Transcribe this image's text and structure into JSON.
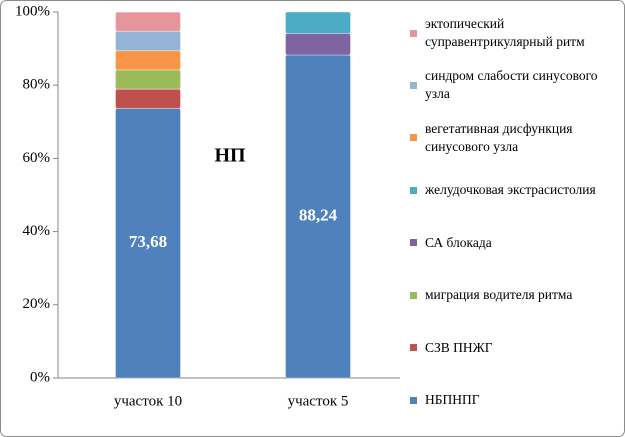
{
  "chart_data": {
    "type": "bar",
    "stacked": true,
    "annotation": "НП",
    "categories": [
      "участок 10",
      "участок 5"
    ],
    "series": [
      {
        "name": "НБПНПГ",
        "color": "#4f81bd",
        "values": [
          73.68,
          88.24
        ],
        "value_labels": [
          "73,68",
          "88,24"
        ]
      },
      {
        "name": "СЗВ ПНЖГ",
        "color": "#c0504d",
        "values": [
          5.26,
          0
        ]
      },
      {
        "name": "миграция водителя ритма",
        "color": "#9bbb59",
        "values": [
          5.26,
          0
        ]
      },
      {
        "name": "СА блокада",
        "color": "#8064a2",
        "values": [
          0,
          5.88
        ]
      },
      {
        "name": "желудочковая экстрасистолия",
        "color": "#4bacc6",
        "values": [
          0,
          5.88
        ]
      },
      {
        "name": "вегетативная дисфункция синусового узла",
        "color": "#f79646",
        "values": [
          5.26,
          0
        ]
      },
      {
        "name": "синдром слабости синусового узла",
        "color": "#95b3d7",
        "values": [
          5.26,
          0
        ]
      },
      {
        "name": "эктопический суправентрикулярный ритм",
        "color": "#e6959c",
        "values": [
          5.26,
          0
        ]
      }
    ],
    "ylim": [
      0,
      100
    ],
    "yticks": [
      {
        "value": 0,
        "label": "0%"
      },
      {
        "value": 20,
        "label": "20%"
      },
      {
        "value": 40,
        "label": "40%"
      },
      {
        "value": 60,
        "label": "60%"
      },
      {
        "value": 80,
        "label": "80%"
      },
      {
        "value": 100,
        "label": "100%"
      }
    ],
    "legend": "right"
  }
}
